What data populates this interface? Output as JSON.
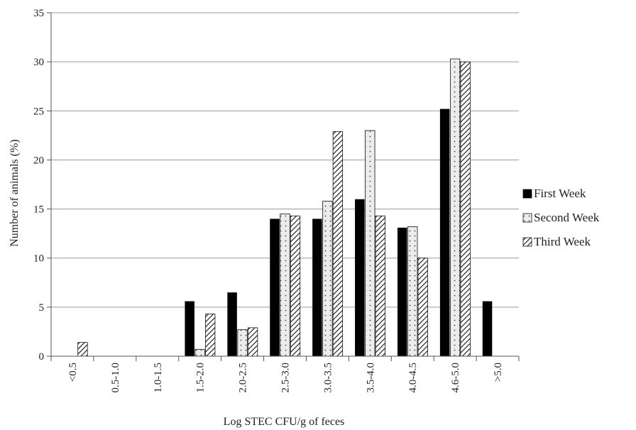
{
  "chart_data": {
    "type": "bar",
    "ylabel": "Number of animals (%)",
    "xlabel": "Log STEC CFU/g of feces",
    "ylim": [
      0,
      35
    ],
    "yticks": [
      0,
      5,
      10,
      15,
      20,
      25,
      30,
      35
    ],
    "grid": "horizontal",
    "legend_position": "right",
    "categories": [
      "<0.5",
      "0.5-1.0",
      "1.0-1.5",
      "1.5-2.0",
      "2.0-2.5",
      "2.5-3.0",
      "3.0-3.5",
      "3.5-4.0",
      "4.0-4.5",
      "4.6-5.0",
      ">5.0"
    ],
    "series": [
      {
        "name": "First Week",
        "pattern": "solid",
        "color": "#000000",
        "values": [
          0,
          0,
          0,
          5.6,
          6.5,
          14.0,
          14.0,
          16.0,
          13.1,
          25.2,
          5.6
        ]
      },
      {
        "name": "Second Week",
        "pattern": "dotted",
        "color": "#e8e8e8",
        "values": [
          0,
          0,
          0,
          0.7,
          2.7,
          14.5,
          15.8,
          23.0,
          13.2,
          30.3,
          0
        ]
      },
      {
        "name": "Third Week",
        "pattern": "hatched",
        "color": "#ffffff",
        "values": [
          1.4,
          0,
          0,
          4.3,
          2.9,
          14.3,
          22.9,
          14.3,
          10.0,
          30.0,
          0
        ]
      }
    ]
  }
}
